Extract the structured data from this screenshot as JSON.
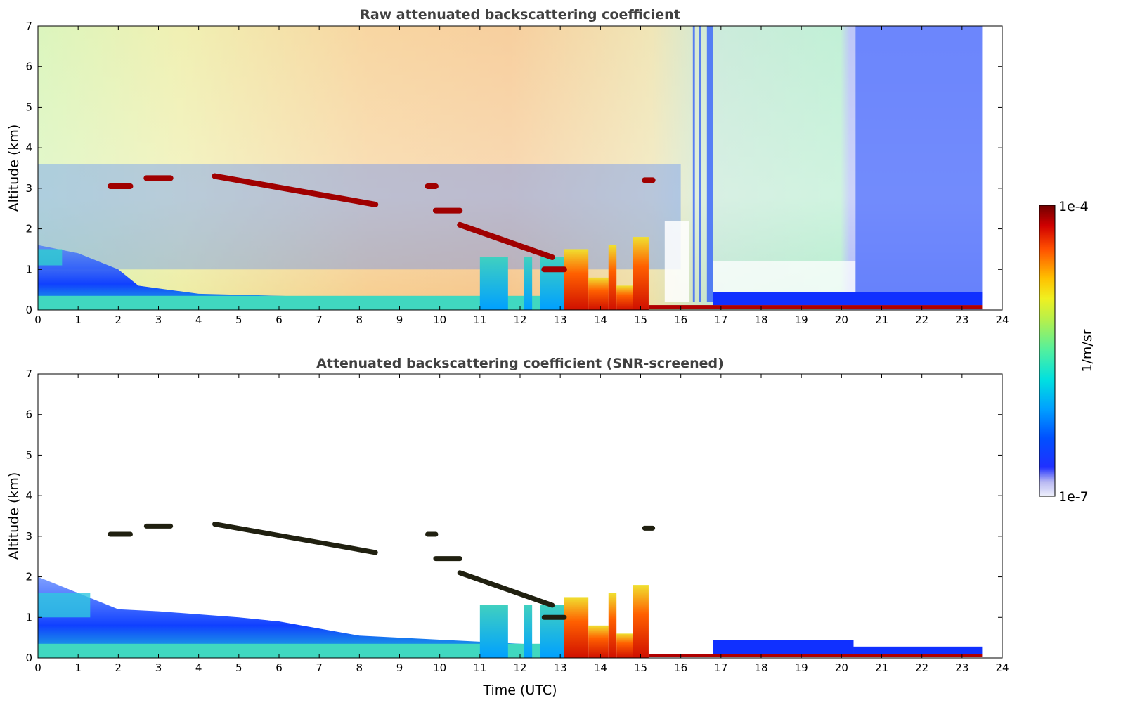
{
  "chart_data": [
    {
      "type": "heatmap",
      "title": "Raw attenuated backscattering coefficient",
      "xlabel": "",
      "ylabel": "Altitude (km)",
      "xlim": [
        0,
        24
      ],
      "ylim": [
        0,
        7
      ],
      "xticks": [
        "0",
        "1",
        "2",
        "3",
        "4",
        "5",
        "6",
        "7",
        "8",
        "9",
        "10",
        "11",
        "12",
        "13",
        "14",
        "15",
        "16",
        "17",
        "18",
        "19",
        "20",
        "21",
        "22",
        "23",
        "24"
      ],
      "yticks": [
        "0",
        "1",
        "2",
        "3",
        "4",
        "5",
        "6",
        "7"
      ],
      "data_extent_x": [
        0,
        23.5
      ],
      "cloud_layers": [
        {
          "x": [
            1.8,
            2.3
          ],
          "altitude": 3.05
        },
        {
          "x": [
            2.7,
            3.3
          ],
          "altitude": 3.25
        },
        {
          "x": [
            4.4,
            8.4
          ],
          "altitude_start": 3.3,
          "altitude_end": 2.6
        },
        {
          "x": [
            9.7,
            9.9
          ],
          "altitude": 3.05
        },
        {
          "x": [
            9.9,
            10.5
          ],
          "altitude": 2.45
        },
        {
          "x": [
            10.5,
            12.8
          ],
          "altitude_start": 2.1,
          "altitude_end": 1.3
        },
        {
          "x": [
            12.6,
            13.1
          ],
          "altitude": 1.0
        },
        {
          "x": [
            15.1,
            15.3
          ],
          "altitude": 3.2
        }
      ],
      "grid": false
    },
    {
      "type": "heatmap",
      "title": "Attenuated backscattering coefficient (SNR-screened)",
      "xlabel": "Time (UTC)",
      "ylabel": "Altitude (km)",
      "xlim": [
        0,
        24
      ],
      "ylim": [
        0,
        7
      ],
      "xticks": [
        "0",
        "1",
        "2",
        "3",
        "4",
        "5",
        "6",
        "7",
        "8",
        "9",
        "10",
        "11",
        "12",
        "13",
        "14",
        "15",
        "16",
        "17",
        "18",
        "19",
        "20",
        "21",
        "22",
        "23",
        "24"
      ],
      "yticks": [
        "0",
        "1",
        "2",
        "3",
        "4",
        "5",
        "6",
        "7"
      ],
      "data_extent_x": [
        0,
        23.5
      ],
      "grid": false
    }
  ],
  "colorbar": {
    "max_label": "1e-4",
    "min_label": "1e-7",
    "unit_label": "1/m/sr",
    "colors": [
      "#eef0fb",
      "#c8c8f5",
      "#9a9af0",
      "#0010ff",
      "#0060ff",
      "#00b0ff",
      "#00e0e0",
      "#40f0a0",
      "#90f060",
      "#e0f030",
      "#ffd000",
      "#ff8000",
      "#ff2000",
      "#b00000",
      "#700000"
    ]
  }
}
